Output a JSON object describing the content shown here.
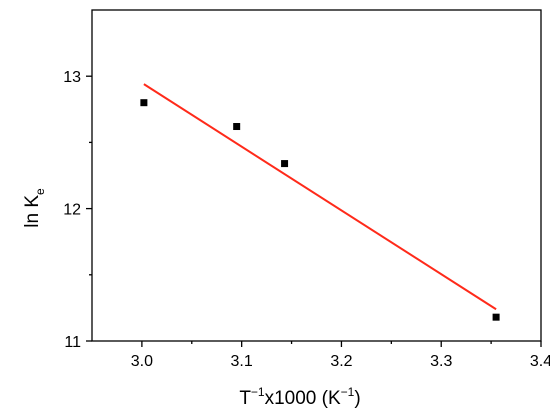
{
  "chart_data": {
    "type": "scatter",
    "title": "",
    "xlabel": {
      "base": "T",
      "sup": "−1",
      "mid": "x1000 (K",
      "sup2": "−1",
      "end": ")"
    },
    "ylabel": {
      "base": "ln K",
      "sub": "e"
    },
    "xlim": [
      2.95,
      3.4
    ],
    "ylim": [
      11.0,
      13.5
    ],
    "x_ticks": [
      3.0,
      3.1,
      3.2,
      3.3,
      3.4
    ],
    "x_tick_labels": [
      "3.0",
      "3.1",
      "3.2",
      "3.3",
      "3.4"
    ],
    "y_ticks": [
      11,
      12,
      13
    ],
    "y_tick_labels": [
      "11",
      "12",
      "13"
    ],
    "grid": false,
    "legend": "none",
    "series": [
      {
        "kind": "points",
        "marker": "square",
        "color": "#000000",
        "x": [
          3.002,
          3.095,
          3.143,
          3.355
        ],
        "y": [
          12.8,
          12.62,
          12.34,
          11.18
        ]
      },
      {
        "kind": "line",
        "color": "#ff2a1a",
        "x": [
          3.002,
          3.355
        ],
        "y": [
          12.94,
          11.24
        ]
      }
    ]
  }
}
